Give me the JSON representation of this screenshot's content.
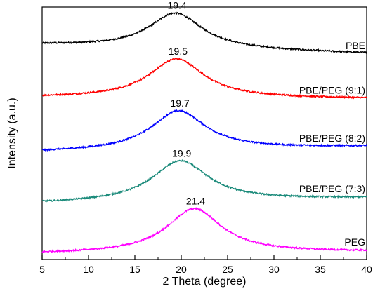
{
  "chart_data": {
    "type": "line",
    "title": "",
    "xlabel": "2 Theta (degree)",
    "ylabel": "Intensity (a.u.)",
    "xlim": [
      5,
      40
    ],
    "ylim": [
      0,
      100
    ],
    "x_ticks": [
      5,
      10,
      15,
      20,
      25,
      30,
      35,
      40
    ],
    "grid": false,
    "legend": "none",
    "series": [
      {
        "name": "PBE",
        "color": "#000000",
        "offset": 80,
        "amp": 14.0,
        "peak": 19.4,
        "width": 3.5,
        "edge_start": 5.0,
        "edge_end": 1.6,
        "peak_label": "19.4"
      },
      {
        "name": "PBE/PEG (9:1)",
        "color": "#ff0000",
        "offset": 61,
        "amp": 15.5,
        "peak": 19.5,
        "width": 3.6,
        "edge_start": 3.2,
        "edge_end": 2.7,
        "peak_label": "19.5"
      },
      {
        "name": "PBE/PEG (8:2)",
        "color": "#0000ff",
        "offset": 41.5,
        "amp": 15.5,
        "peak": 19.7,
        "width": 3.6,
        "edge_start": 1.0,
        "edge_end": 3.2,
        "peak_label": "19.7"
      },
      {
        "name": "PBE/PEG (7:3)",
        "color": "#1a8a7a",
        "offset": 21,
        "amp": 16.0,
        "peak": 19.9,
        "width": 3.7,
        "edge_start": 1.2,
        "edge_end": 3.3,
        "peak_label": "19.9"
      },
      {
        "name": "PEG",
        "color": "#ff00ff",
        "offset": 1.5,
        "amp": 17.5,
        "peak": 21.4,
        "width": 3.6,
        "edge_start": 0.8,
        "edge_end": 1.6,
        "peak_label": "21.4"
      }
    ]
  }
}
